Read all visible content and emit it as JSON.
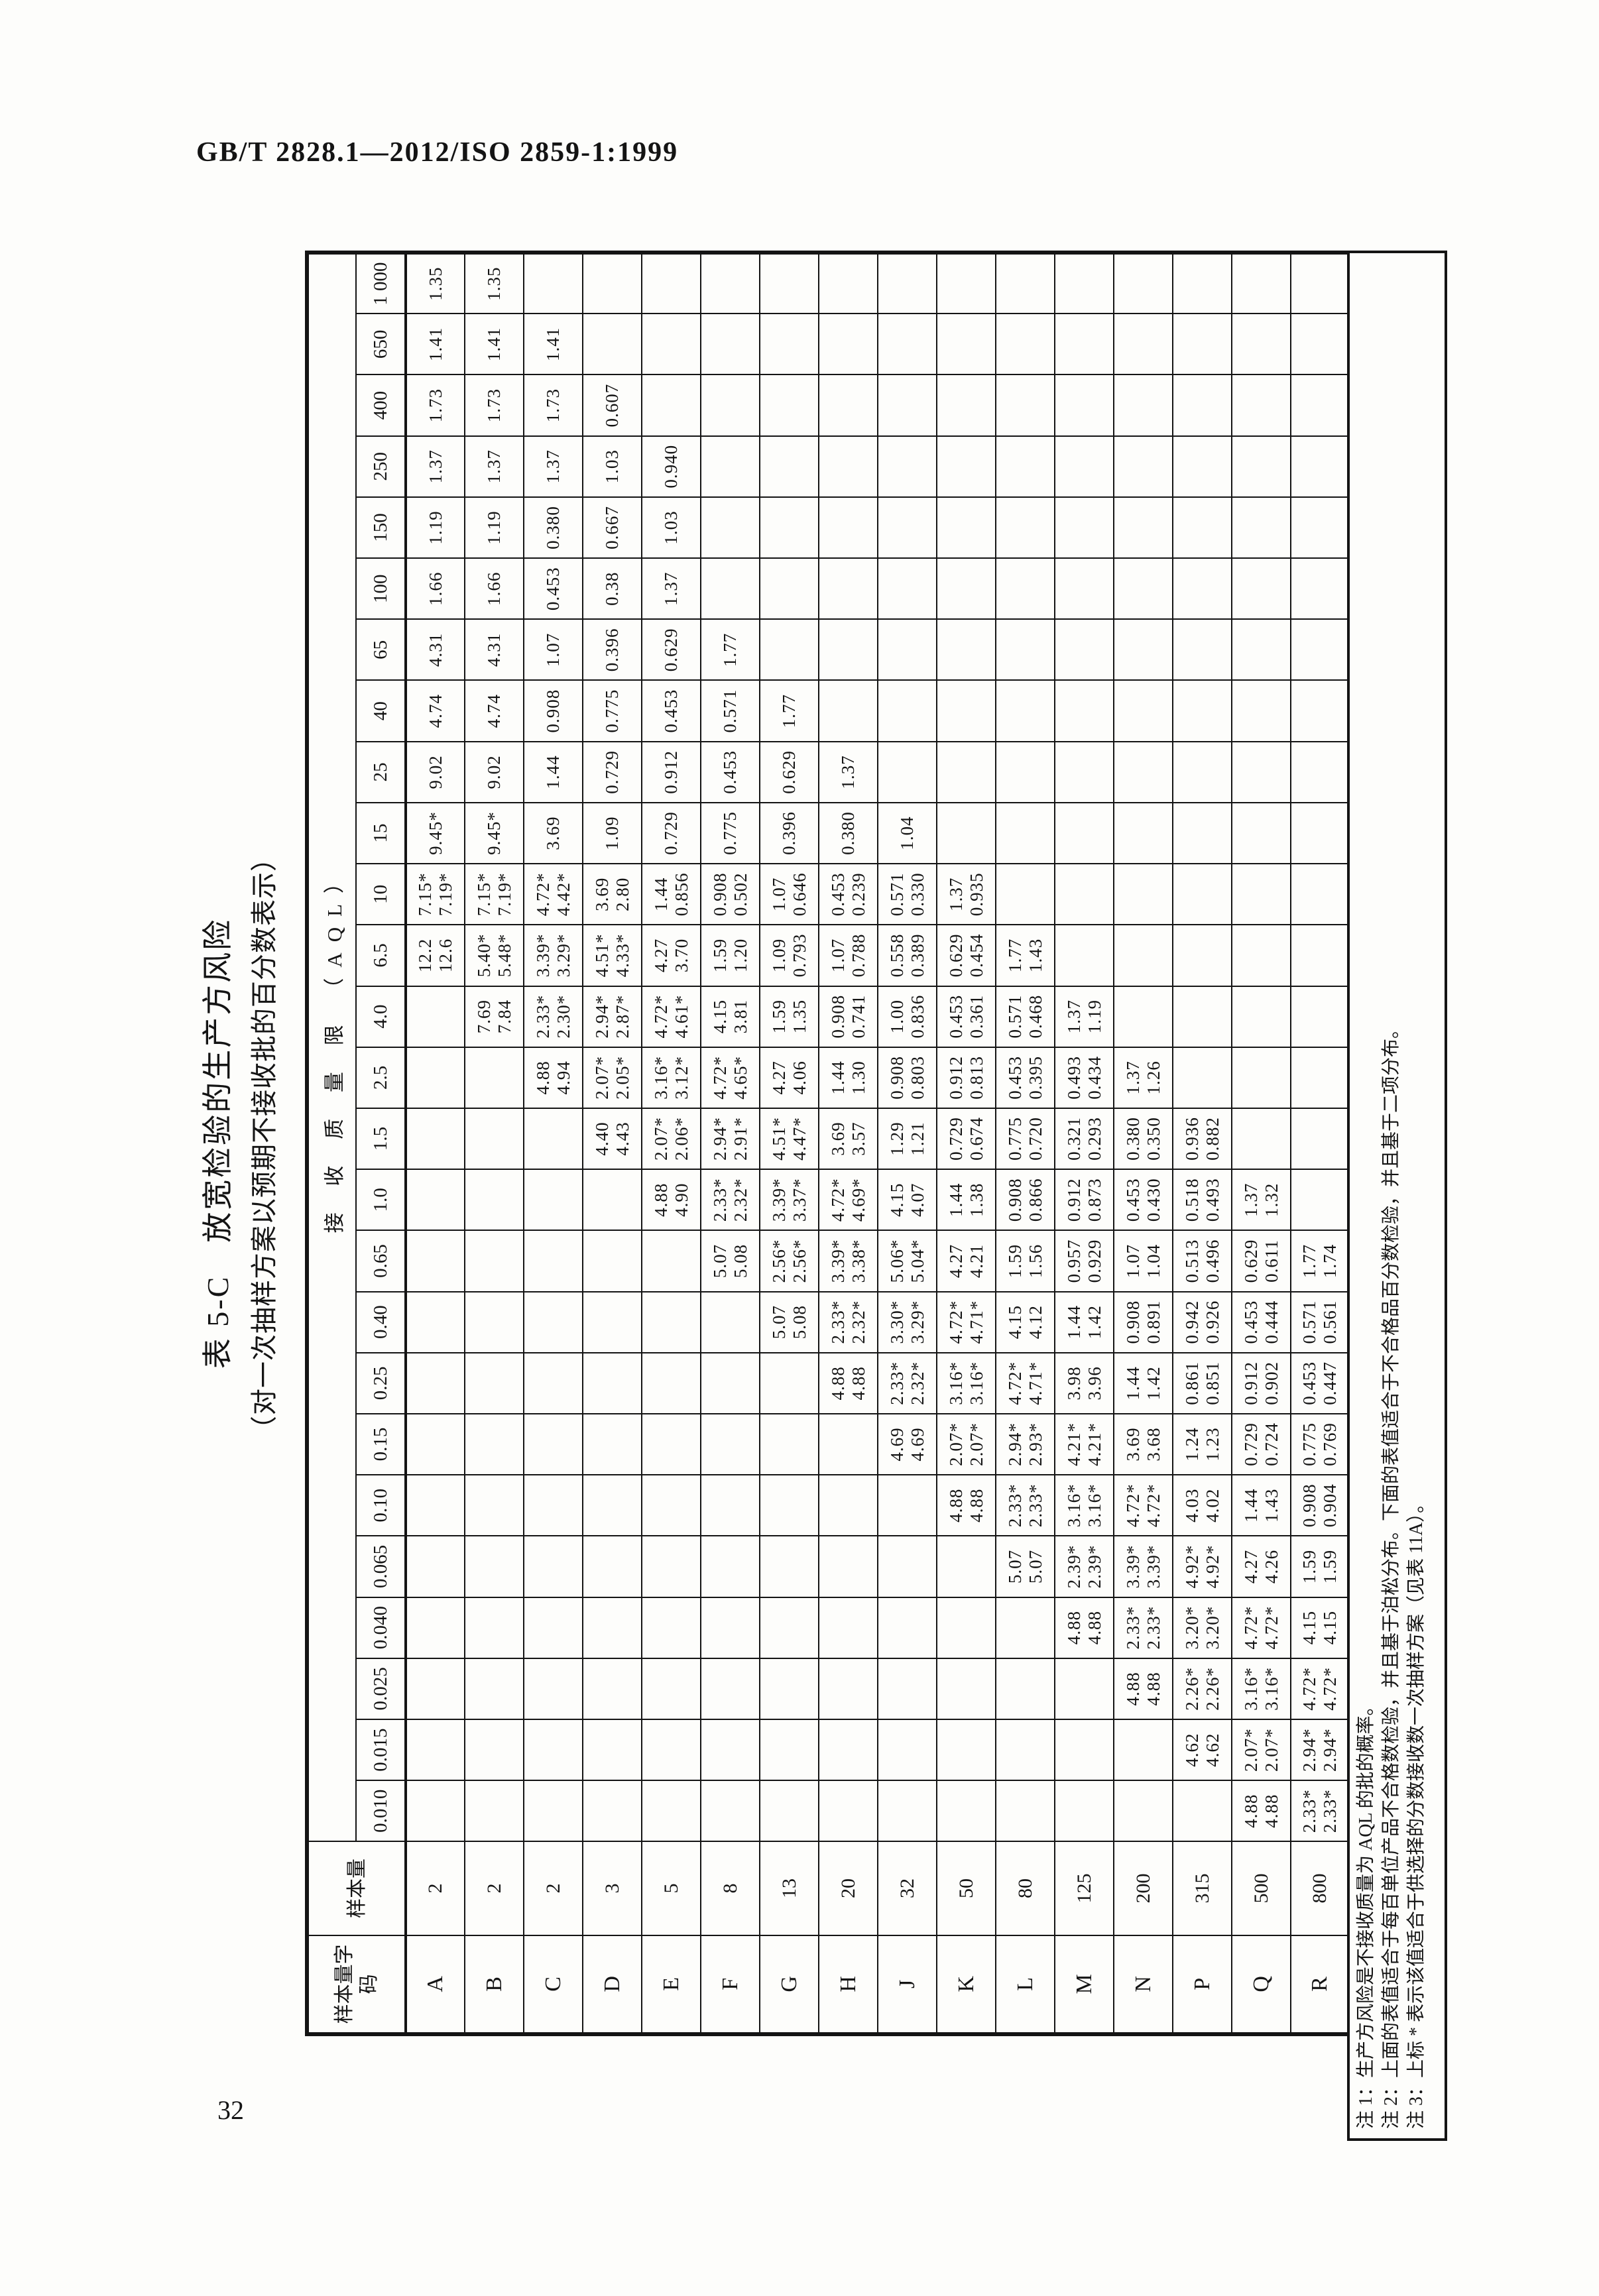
{
  "page": {
    "doc_header": "GB/T 2828.1—2012/ISO 2859-1:1999",
    "page_number": "32"
  },
  "table": {
    "title": "表 5-C　放宽检验的生产方风险",
    "subtitle": "（对一次抽样方案以预期不接收批的百分数表示）",
    "banner": "接 收 质 量 限 （AQL）",
    "row_header_code": "样本量字码",
    "row_header_size": "样本量",
    "aql_labels": [
      "0.010",
      "0.015",
      "0.025",
      "0.040",
      "0.065",
      "0.10",
      "0.15",
      "0.25",
      "0.40",
      "0.65",
      "1.0",
      "1.5",
      "2.5",
      "4.0",
      "6.5",
      "10",
      "15",
      "25",
      "40",
      "65",
      "100",
      "150",
      "250",
      "400",
      "650",
      "1 000"
    ],
    "rows": [
      {
        "code": "A",
        "size": "2",
        "start": 14,
        "vals": [
          [
            "12.2",
            "12.6"
          ],
          [
            "7.15*",
            "7.19*"
          ],
          [
            "9.45*"
          ],
          [
            "9.02"
          ],
          [
            "4.74"
          ],
          [
            "4.31"
          ],
          [
            "1.66"
          ],
          [
            "1.19"
          ],
          [
            "1.37"
          ],
          [
            "1.73"
          ],
          [
            "1.41"
          ],
          [
            "1.35"
          ]
        ]
      },
      {
        "code": "B",
        "size": "2",
        "start": 13,
        "vals": [
          [
            "7.69",
            "7.84"
          ],
          [
            "5.40*",
            "5.48*"
          ],
          [
            "7.15*",
            "7.19*"
          ],
          [
            "9.45*"
          ],
          [
            "9.02"
          ],
          [
            "4.74"
          ],
          [
            "4.31"
          ],
          [
            "1.66"
          ],
          [
            "1.19"
          ],
          [
            "1.37"
          ],
          [
            "1.73"
          ],
          [
            "1.41"
          ],
          [
            "1.35"
          ]
        ]
      },
      {
        "code": "C",
        "size": "2",
        "start": 12,
        "vals": [
          [
            "4.88",
            "4.94"
          ],
          [
            "2.33*",
            "2.30*"
          ],
          [
            "3.39*",
            "3.29*"
          ],
          [
            "4.72*",
            "4.42*"
          ],
          [
            "3.69"
          ],
          [
            "1.44"
          ],
          [
            "0.908"
          ],
          [
            "1.07"
          ],
          [
            "0.453"
          ],
          [
            "0.380"
          ],
          [
            "1.37"
          ],
          [
            "1.73"
          ],
          [
            "1.41"
          ]
        ]
      },
      {
        "code": "D",
        "size": "3",
        "start": 11,
        "vals": [
          [
            "4.40",
            "4.43"
          ],
          [
            "2.07*",
            "2.05*"
          ],
          [
            "2.94*",
            "2.87*"
          ],
          [
            "4.51*",
            "4.33*"
          ],
          [
            "3.69",
            "2.80"
          ],
          [
            "1.09"
          ],
          [
            "0.729"
          ],
          [
            "0.775"
          ],
          [
            "0.396"
          ],
          [
            "0.38"
          ],
          [
            "0.667"
          ],
          [
            "1.03"
          ],
          [
            "0.607"
          ]
        ]
      },
      {
        "code": "E",
        "size": "5",
        "start": 10,
        "vals": [
          [
            "4.88",
            "4.90"
          ],
          [
            "2.07*",
            "2.06*"
          ],
          [
            "3.16*",
            "3.12*"
          ],
          [
            "4.72*",
            "4.61*"
          ],
          [
            "4.27",
            "3.70"
          ],
          [
            "1.44",
            "0.856"
          ],
          [
            "0.729"
          ],
          [
            "0.912"
          ],
          [
            "0.453"
          ],
          [
            "0.629"
          ],
          [
            "1.37"
          ],
          [
            "1.03"
          ],
          [
            "0.940"
          ]
        ]
      },
      {
        "code": "F",
        "size": "8",
        "start": 9,
        "vals": [
          [
            "5.07",
            "5.08"
          ],
          [
            "2.33*",
            "2.32*"
          ],
          [
            "2.94*",
            "2.91*"
          ],
          [
            "4.72*",
            "4.65*"
          ],
          [
            "4.15",
            "3.81"
          ],
          [
            "1.59",
            "1.20"
          ],
          [
            "0.908",
            "0.502"
          ],
          [
            "0.775"
          ],
          [
            "0.453"
          ],
          [
            "0.571"
          ],
          [
            "1.77"
          ]
        ]
      },
      {
        "code": "G",
        "size": "13",
        "start": 8,
        "vals": [
          [
            "5.07",
            "5.08"
          ],
          [
            "2.56*",
            "2.56*"
          ],
          [
            "3.39*",
            "3.37*"
          ],
          [
            "4.51*",
            "4.47*"
          ],
          [
            "4.27",
            "4.06"
          ],
          [
            "1.59",
            "1.35"
          ],
          [
            "1.09",
            "0.793"
          ],
          [
            "1.07",
            "0.646"
          ],
          [
            "0.396"
          ],
          [
            "0.629"
          ],
          [
            "1.77"
          ]
        ]
      },
      {
        "code": "H",
        "size": "20",
        "start": 7,
        "vals": [
          [
            "4.88",
            "4.88"
          ],
          [
            "2.33*",
            "2.32*"
          ],
          [
            "3.39*",
            "3.38*"
          ],
          [
            "4.72*",
            "4.69*"
          ],
          [
            "3.69",
            "3.57"
          ],
          [
            "1.44",
            "1.30"
          ],
          [
            "0.908",
            "0.741"
          ],
          [
            "1.07",
            "0.788"
          ],
          [
            "0.453",
            "0.239"
          ],
          [
            "0.380"
          ],
          [
            "1.37"
          ]
        ]
      },
      {
        "code": "J",
        "size": "32",
        "start": 6,
        "vals": [
          [
            "4.69",
            "4.69"
          ],
          [
            "2.33*",
            "2.32*"
          ],
          [
            "3.30*",
            "3.29*"
          ],
          [
            "5.06*",
            "5.04*"
          ],
          [
            "4.15",
            "4.07"
          ],
          [
            "1.29",
            "1.21"
          ],
          [
            "0.908",
            "0.803"
          ],
          [
            "1.00",
            "0.836"
          ],
          [
            "0.558",
            "0.389"
          ],
          [
            "0.571",
            "0.330"
          ],
          [
            "1.04"
          ]
        ]
      },
      {
        "code": "K",
        "size": "50",
        "start": 5,
        "vals": [
          [
            "4.88",
            "4.88"
          ],
          [
            "2.07*",
            "2.07*"
          ],
          [
            "3.16*",
            "3.16*"
          ],
          [
            "4.72*",
            "4.71*"
          ],
          [
            "4.27",
            "4.21"
          ],
          [
            "1.44",
            "1.38"
          ],
          [
            "0.729",
            "0.674"
          ],
          [
            "0.912",
            "0.813"
          ],
          [
            "0.453",
            "0.361"
          ],
          [
            "0.629",
            "0.454"
          ],
          [
            "1.37",
            "0.935"
          ]
        ]
      },
      {
        "code": "L",
        "size": "80",
        "start": 4,
        "vals": [
          [
            "5.07",
            "5.07"
          ],
          [
            "2.33*",
            "2.33*"
          ],
          [
            "2.94*",
            "2.93*"
          ],
          [
            "4.72*",
            "4.71*"
          ],
          [
            "4.15",
            "4.12"
          ],
          [
            "1.59",
            "1.56"
          ],
          [
            "0.908",
            "0.866"
          ],
          [
            "0.775",
            "0.720"
          ],
          [
            "0.453",
            "0.395"
          ],
          [
            "0.571",
            "0.468"
          ],
          [
            "1.77",
            "1.43"
          ]
        ]
      },
      {
        "code": "M",
        "size": "125",
        "start": 3,
        "vals": [
          [
            "4.88",
            "4.88"
          ],
          [
            "2.39*",
            "2.39*"
          ],
          [
            "3.16*",
            "3.16*"
          ],
          [
            "4.21*",
            "4.21*"
          ],
          [
            "3.98",
            "3.96"
          ],
          [
            "1.44",
            "1.42"
          ],
          [
            "0.957",
            "0.929"
          ],
          [
            "0.912",
            "0.873"
          ],
          [
            "0.321",
            "0.293"
          ],
          [
            "0.493",
            "0.434"
          ],
          [
            "1.37",
            "1.19"
          ]
        ]
      },
      {
        "code": "N",
        "size": "200",
        "start": 2,
        "vals": [
          [
            "4.88",
            "4.88"
          ],
          [
            "2.33*",
            "2.33*"
          ],
          [
            "3.39*",
            "3.39*"
          ],
          [
            "4.72*",
            "4.72*"
          ],
          [
            "3.69",
            "3.68"
          ],
          [
            "1.44",
            "1.42"
          ],
          [
            "0.908",
            "0.891"
          ],
          [
            "1.07",
            "1.04"
          ],
          [
            "0.453",
            "0.430"
          ],
          [
            "0.380",
            "0.350"
          ],
          [
            "1.37",
            "1.26"
          ]
        ]
      },
      {
        "code": "P",
        "size": "315",
        "start": 1,
        "vals": [
          [
            "4.62",
            "4.62"
          ],
          [
            "2.26*",
            "2.26*"
          ],
          [
            "3.20*",
            "3.20*"
          ],
          [
            "4.92*",
            "4.92*"
          ],
          [
            "4.03",
            "4.02"
          ],
          [
            "1.24",
            "1.23"
          ],
          [
            "0.861",
            "0.851"
          ],
          [
            "0.942",
            "0.926"
          ],
          [
            "0.513",
            "0.496"
          ],
          [
            "0.518",
            "0.493"
          ],
          [
            "0.936",
            "0.882"
          ]
        ]
      },
      {
        "code": "Q",
        "size": "500",
        "start": 0,
        "vals": [
          [
            "4.88",
            "4.88"
          ],
          [
            "2.07*",
            "2.07*"
          ],
          [
            "3.16*",
            "3.16*"
          ],
          [
            "4.72*",
            "4.72*"
          ],
          [
            "4.27",
            "4.26"
          ],
          [
            "1.44",
            "1.43"
          ],
          [
            "0.729",
            "0.724"
          ],
          [
            "0.912",
            "0.902"
          ],
          [
            "0.453",
            "0.444"
          ],
          [
            "0.629",
            "0.611"
          ],
          [
            "1.37",
            "1.32"
          ]
        ]
      },
      {
        "code": "R",
        "size": "800",
        "start": 0,
        "vals": [
          [
            "2.33*",
            "2.33*"
          ],
          [
            "2.94*",
            "2.94*"
          ],
          [
            "4.72*",
            "4.72*"
          ],
          [
            "4.15",
            "4.15"
          ],
          [
            "1.59",
            "1.59"
          ],
          [
            "0.908",
            "0.904"
          ],
          [
            "0.775",
            "0.769"
          ],
          [
            "0.453",
            "0.447"
          ],
          [
            "0.571",
            "0.561"
          ],
          [
            "1.77",
            "1.74"
          ]
        ]
      }
    ]
  },
  "notes": [
    "注 1：生产方风险是不接收质量为 AQL 的批的概率。",
    "注 2：上面的表值适合于每百单位产品不合格数检验，并且基于泊松分布。下面的表值适合于不合格品百分数检验，并且基于二项分布。",
    "注 3：上标 * 表示该值适合于供选择的分数接收数一次抽样方案（见表 11A）。"
  ]
}
